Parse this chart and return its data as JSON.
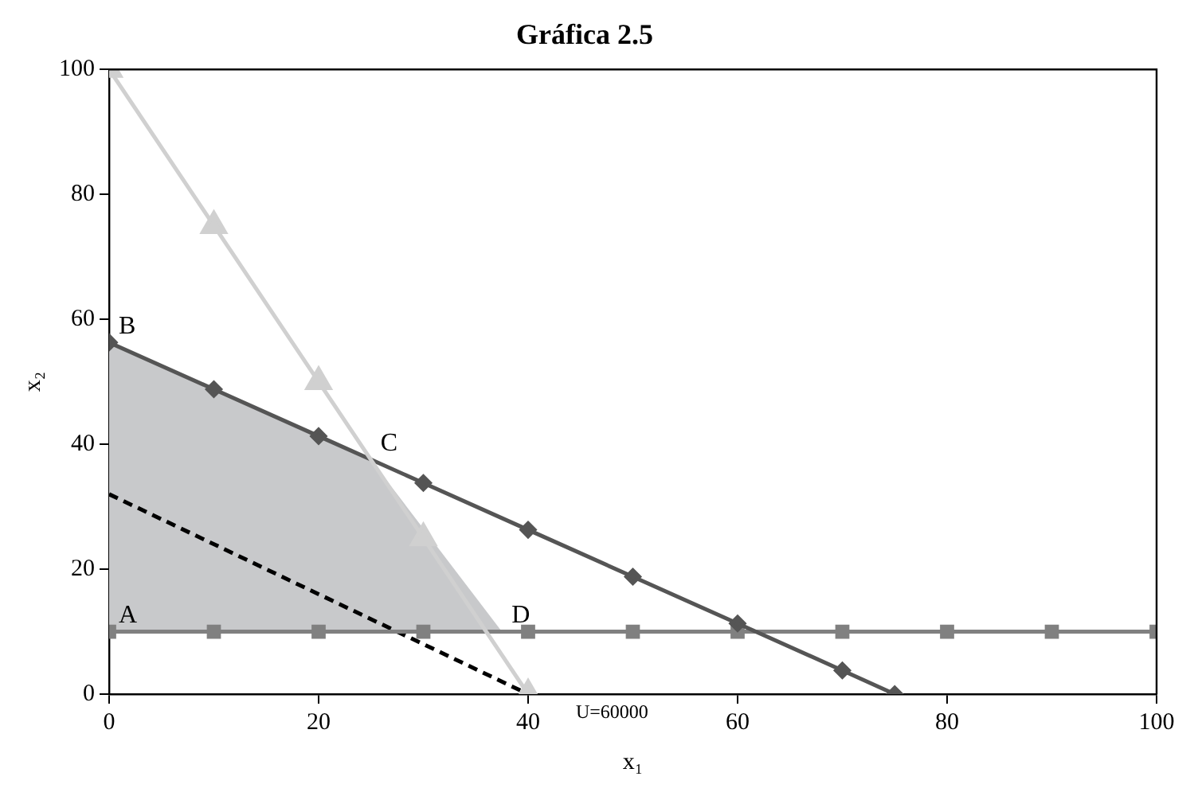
{
  "chart_data": {
    "type": "line",
    "title": "Gráfica 2.5",
    "xlabel": "x₁",
    "ylabel": "x₂",
    "xlim": [
      0,
      100
    ],
    "xticks": [
      0,
      20,
      40,
      60,
      80,
      100
    ],
    "ylim": [
      0,
      100
    ],
    "yticks": [
      0,
      20,
      40,
      60,
      80,
      100
    ],
    "grid": false,
    "legend": false,
    "series": [
      {
        "type": "area",
        "color": "#c8c9cb",
        "x": [
          0,
          0,
          25,
          37.5,
          0
        ],
        "values": [
          10,
          56.3,
          37.5,
          10,
          10
        ],
        "marker": "none"
      },
      {
        "type": "line",
        "color": "#d0d0d0",
        "x": [
          0,
          10,
          20,
          30,
          40
        ],
        "values": [
          100,
          75,
          50,
          25,
          0
        ],
        "marker": "triangle"
      },
      {
        "type": "line",
        "color": "#555555",
        "x": [
          0,
          10,
          20,
          30,
          40,
          50,
          60,
          70,
          75
        ],
        "values": [
          56.3,
          48.8,
          41.3,
          33.8,
          26.3,
          18.8,
          11.3,
          3.8,
          0
        ],
        "marker": "diamond"
      },
      {
        "type": "line",
        "color": "#808080",
        "x": [
          0,
          10,
          20,
          30,
          40,
          50,
          60,
          70,
          80,
          90,
          100
        ],
        "values": [
          10,
          10,
          10,
          10,
          10,
          10,
          10,
          10,
          10,
          10,
          10
        ],
        "marker": "square"
      },
      {
        "type": "line",
        "color": "#000000",
        "x": [
          0,
          40
        ],
        "values": [
          32,
          0
        ],
        "marker": "none",
        "line_style": "dashed"
      }
    ],
    "annotations": [
      {
        "text": "A",
        "x": 0,
        "y": 10
      },
      {
        "text": "B",
        "x": 0,
        "y": 56.3
      },
      {
        "text": "C",
        "x": 25,
        "y": 37.5
      },
      {
        "text": "D",
        "x": 37.5,
        "y": 10
      },
      {
        "text": "U=60000",
        "x": 40,
        "y": 0
      }
    ]
  }
}
